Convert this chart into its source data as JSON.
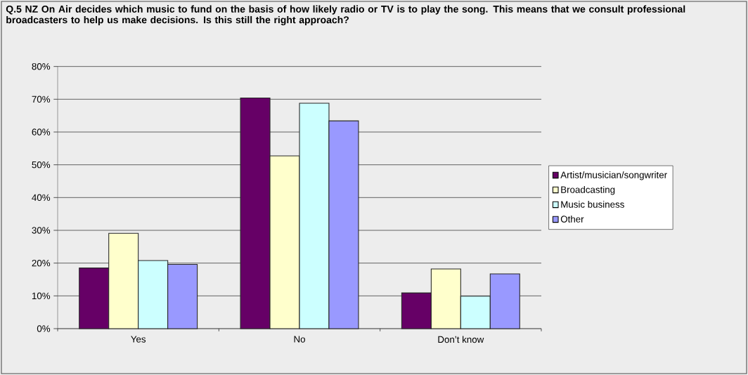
{
  "chart_data": {
    "type": "bar",
    "title": "Q.5 NZ On Air decides which music to fund on the basis of how likely radio or TV is to play the song. This means that we consult professional broadcasters to help us make decisions. Is this still the right approach?",
    "categories": [
      "Yes",
      "No",
      "Don’t know"
    ],
    "series": [
      {
        "name": "Artist/musician/songwriter",
        "color": "#660066",
        "values": [
          18.5,
          70.4,
          10.9
        ]
      },
      {
        "name": "Broadcasting",
        "color": "#ffffcc",
        "values": [
          29.1,
          52.7,
          18.2
        ]
      },
      {
        "name": "Music business",
        "color": "#ccffff",
        "values": [
          20.8,
          68.8,
          9.9
        ]
      },
      {
        "name": "Other",
        "color": "#9999ff",
        "values": [
          19.6,
          63.4,
          16.7
        ]
      }
    ],
    "ylim": [
      0,
      80
    ],
    "yticks": [
      {
        "value": 0,
        "label": "0%"
      },
      {
        "value": 10,
        "label": "10%"
      },
      {
        "value": 20,
        "label": "20%"
      },
      {
        "value": 30,
        "label": "30%"
      },
      {
        "value": 40,
        "label": "40%"
      },
      {
        "value": 50,
        "label": "50%"
      },
      {
        "value": 60,
        "label": "60%"
      },
      {
        "value": 70,
        "label": "70%"
      },
      {
        "value": 80,
        "label": "80%"
      }
    ],
    "grid": "y",
    "legend": "right"
  }
}
